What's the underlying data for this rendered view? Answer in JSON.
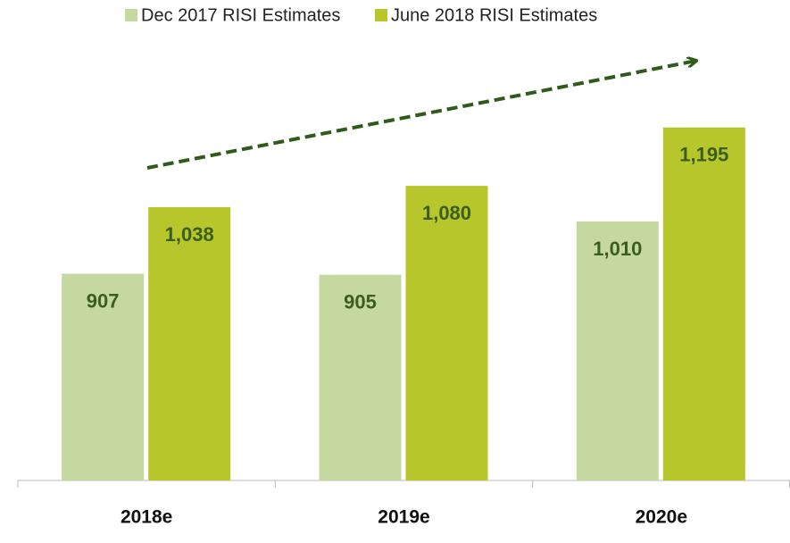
{
  "chart_data": {
    "type": "bar",
    "categories": [
      "2018e",
      "2019e",
      "2020e"
    ],
    "series": [
      {
        "name": "Dec 2017 RISI Estimates",
        "color": "#c4d89f",
        "values": [
          907,
          905,
          1010
        ],
        "value_labels": [
          "907",
          "905",
          "1,010"
        ]
      },
      {
        "name": "June 2018 RISI Estimates",
        "color": "#b7c72b",
        "values": [
          1038,
          1080,
          1195
        ],
        "value_labels": [
          "1,038",
          "1,080",
          "1,195"
        ]
      }
    ],
    "ylim": [
      500,
      1300
    ],
    "legend": "top"
  }
}
